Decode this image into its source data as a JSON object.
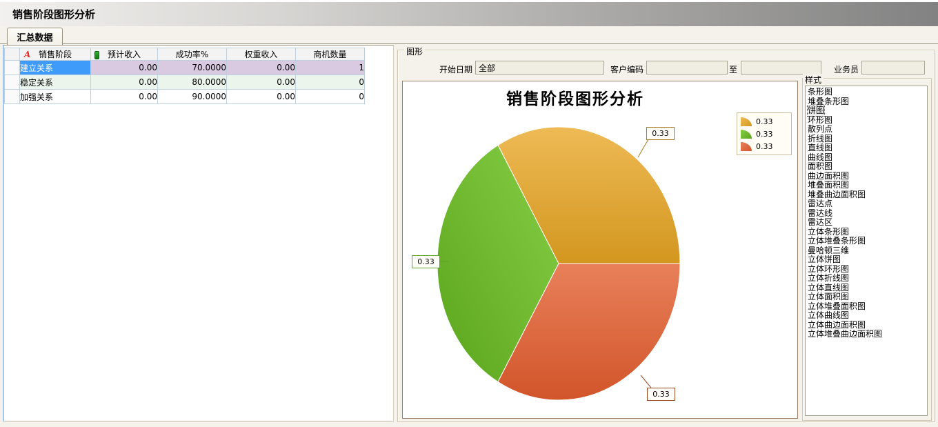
{
  "window": {
    "title": "销售阶段图形分析"
  },
  "tab": {
    "label": "汇总数据"
  },
  "summary_table": {
    "header": {
      "stage": "销售阶段",
      "expected_revenue": "预计收入",
      "success_rate": "成功率%",
      "weighted_revenue": "权重收入",
      "opportunity_count": "商机数量"
    },
    "header_icons": {
      "stage": "red-letter-A-icon",
      "expected_revenue": "green-pill-icon"
    },
    "rows": [
      {
        "stage": "建立关系",
        "expected": "0.00",
        "success": "70.0000",
        "weighted": "0.00",
        "count": "1"
      },
      {
        "stage": "稳定关系",
        "expected": "0.00",
        "success": "80.0000",
        "weighted": "0.00",
        "count": "0"
      },
      {
        "stage": "加强关系",
        "expected": "0.00",
        "success": "90.0000",
        "weighted": "0.00",
        "count": "0"
      }
    ],
    "selected_cell": {
      "row": 0,
      "column": "stage"
    }
  },
  "graph_panel": {
    "group_label": "图形",
    "filters": {
      "start_date_label": "开始日期",
      "start_date_value": "全部",
      "customer_code_label": "客户编码",
      "customer_code_value": "",
      "range_to_label": "至",
      "range_to_value": "",
      "salesperson_label": "业务员",
      "salesperson_value": ""
    }
  },
  "style_panel": {
    "group_label": "样式",
    "selected": "饼图",
    "options": [
      "条形图",
      "堆叠条形图",
      "饼图",
      "环形图",
      "散列点",
      "折线图",
      "直线图",
      "曲线图",
      "面积图",
      "曲边面积图",
      "堆叠面积图",
      "堆叠曲边面积图",
      "雷达点",
      "雷达线",
      "雷达区",
      "立体条形图",
      "立体堆叠条形图",
      "曼哈顿三维",
      "立体饼图",
      "立体环形图",
      "立体折线图",
      "立体直线图",
      "立体面积图",
      "立体堆叠面积图",
      "立体曲线图",
      "立体曲边面积图",
      "立体堆叠曲边面积图"
    ]
  },
  "chart_data": {
    "type": "pie",
    "title": "销售阶段图形分析",
    "values": [
      0.33,
      0.33,
      0.33
    ],
    "slice_labels": [
      "0.33",
      "0.33",
      "0.33"
    ],
    "legend_labels": [
      "0.33",
      "0.33",
      "0.33"
    ],
    "legend_position": "top-right",
    "label_style": "callout-boxes",
    "colors": {
      "slice1_light": "#eeba55",
      "slice1_dark": "#d3971f",
      "slice2_light": "#87ce45",
      "slice2_dark": "#5aa51d",
      "slice3_light": "#e8805a",
      "slice3_dark": "#d2552a",
      "callout1_border": "#a8791f",
      "callout2_border": "#61a224",
      "callout3_border": "#9c4a22"
    }
  },
  "ui_colors": {
    "selection_blue": "#3e9bfa",
    "selected_row_purple": "#d9c9e1",
    "alt_row_green": "#ecf5ec",
    "grid_line": "#bed0de",
    "panel_cream": "#f4f2ea",
    "chart_border_brown": "#9b7c64"
  }
}
